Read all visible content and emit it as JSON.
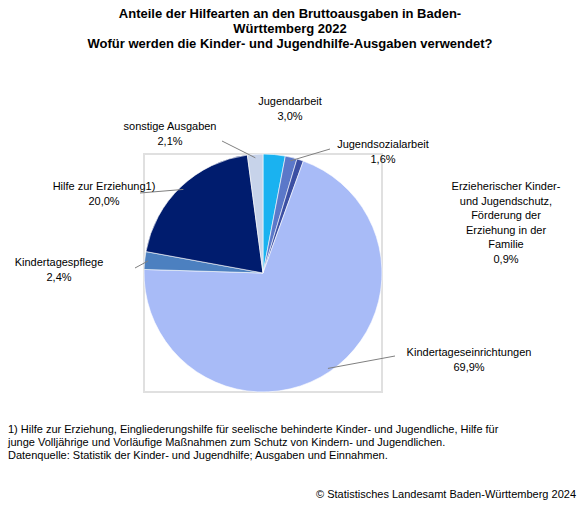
{
  "chart_data": {
    "type": "pie",
    "title": "Anteile der Hilfearten an den Bruttoausgaben in Baden-Württemberg 2022",
    "subtitle": "Wofür werden die Kinder- und Jugendhilfe-Ausgaben verwendet?",
    "categories": [
      "Jugendarbeit",
      "Jugendsozialarbeit",
      "Erzieherischer Kinder- und Jugendschutz, Förderung der Erziehung in der Familie",
      "Kindertageseinrichtungen",
      "Kindertagespflege",
      "Hilfe zur Erziehung1)",
      "sonstige Ausgaben"
    ],
    "values": [
      3.0,
      1.6,
      0.9,
      69.9,
      2.4,
      20.0,
      2.1
    ],
    "value_labels": [
      "3,0%",
      "1,6%",
      "0,9%",
      "69,9%",
      "2,4%",
      "20,0%",
      "2,1%"
    ],
    "colors": [
      "#1ab2f0",
      "#5b78c9",
      "#3b4fa3",
      "#a8bbf7",
      "#4c80c0",
      "#001c6e",
      "#c7d3ea"
    ],
    "data_labels": true,
    "footnote": "1) Hilfe zur Erziehung, Eingliederungshilfe für seelische behinderte Kinder- und Jugendliche, Hilfe für junge Volljährige und Vorläufige Maßnahmen zum Schutz von Kindern- und Jugendlichen.",
    "source": "Datenquelle: Statistik der Kinder- und Jugendhilfe; Ausgaben und Einnahmen.",
    "credit": "© Statistisches Landesamt Baden-Württemberg 2024"
  }
}
